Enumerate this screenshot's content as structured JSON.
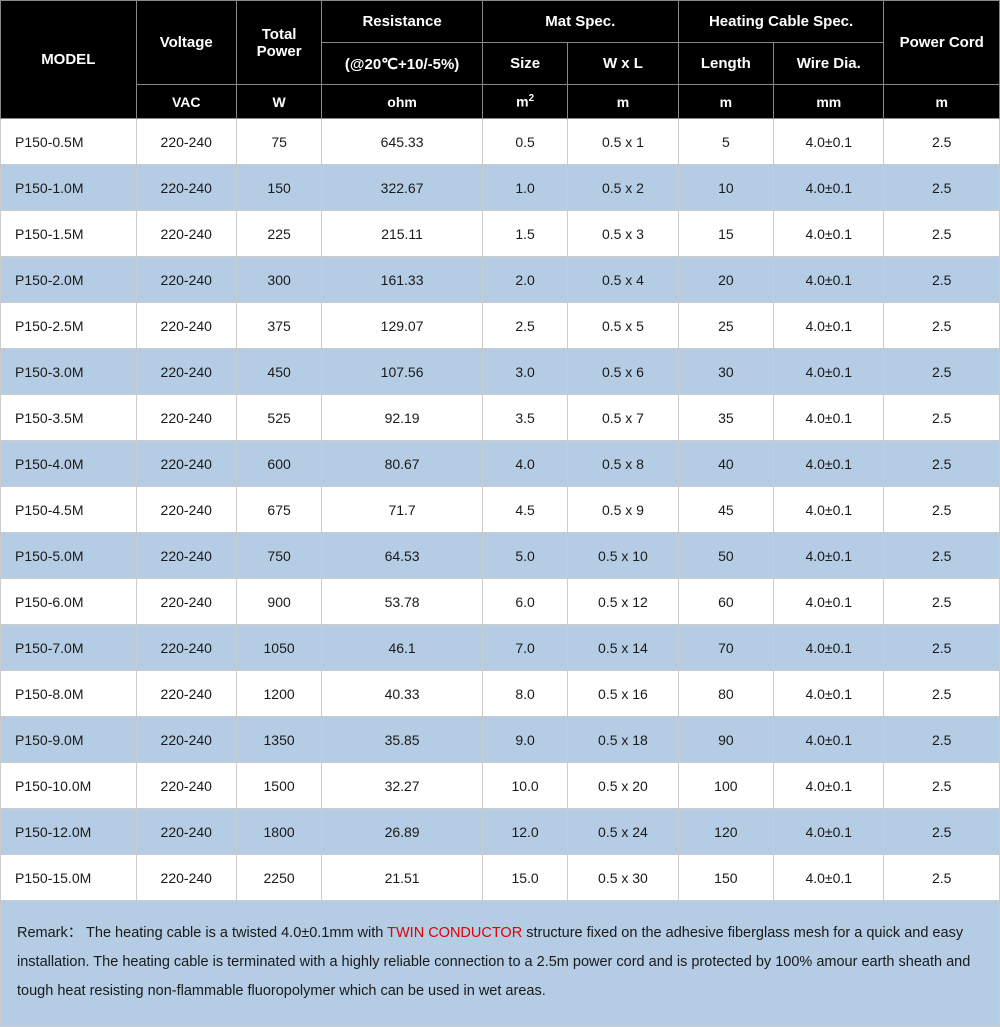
{
  "table": {
    "type": "table",
    "header_bg": "#000000",
    "header_fg": "#ffffff",
    "row_odd_bg": "#ffffff",
    "row_even_bg": "#b4cce4",
    "border_color": "#cccccc",
    "header_border_color": "#888888",
    "font_family": "Arial",
    "body_fontsize": 14,
    "header_fontsize": 15,
    "column_widths_pct": [
      13.5,
      10,
      8.5,
      16,
      8.5,
      11,
      9.5,
      11,
      11.5
    ],
    "columns": [
      {
        "group": "MODEL",
        "sub": "",
        "unit": ""
      },
      {
        "group": "Voltage",
        "sub": "",
        "unit": "VAC"
      },
      {
        "group": "Total Power",
        "sub": "",
        "unit": "W"
      },
      {
        "group": "Resistance",
        "sub": "(@20℃+10/-5%)",
        "unit": "ohm"
      },
      {
        "group": "Mat Spec.",
        "sub": "Size",
        "unit": "m²"
      },
      {
        "group": "Mat Spec.",
        "sub": "W x L",
        "unit": "m"
      },
      {
        "group": "Heating Cable Spec.",
        "sub": "Length",
        "unit": "m"
      },
      {
        "group": "Heating Cable Spec.",
        "sub": "Wire Dia.",
        "unit": "mm"
      },
      {
        "group": "Power Cord",
        "sub": "",
        "unit": "m"
      }
    ],
    "header_labels": {
      "model": "MODEL",
      "voltage": "Voltage",
      "total_power": "Total Power",
      "resistance": "Resistance",
      "resistance_sub": "(@20℃+10/-5%)",
      "mat_spec": "Mat Spec.",
      "mat_size": "Size",
      "mat_wxl": "W x L",
      "cable_spec": "Heating Cable Spec.",
      "cable_length": "Length",
      "cable_dia": "Wire Dia.",
      "power_cord": "Power Cord",
      "unit_vac": "VAC",
      "unit_w": "W",
      "unit_ohm": "ohm",
      "unit_m2": "m²",
      "unit_m": "m",
      "unit_mm": "mm"
    },
    "rows": [
      [
        "P150-0.5M",
        "220-240",
        "75",
        "645.33",
        "0.5",
        "0.5 x 1",
        "5",
        "4.0±0.1",
        "2.5"
      ],
      [
        "P150-1.0M",
        "220-240",
        "150",
        "322.67",
        "1.0",
        "0.5 x 2",
        "10",
        "4.0±0.1",
        "2.5"
      ],
      [
        "P150-1.5M",
        "220-240",
        "225",
        "215.11",
        "1.5",
        "0.5 x 3",
        "15",
        "4.0±0.1",
        "2.5"
      ],
      [
        "P150-2.0M",
        "220-240",
        "300",
        "161.33",
        "2.0",
        "0.5 x 4",
        "20",
        "4.0±0.1",
        "2.5"
      ],
      [
        "P150-2.5M",
        "220-240",
        "375",
        "129.07",
        "2.5",
        "0.5 x 5",
        "25",
        "4.0±0.1",
        "2.5"
      ],
      [
        "P150-3.0M",
        "220-240",
        "450",
        "107.56",
        "3.0",
        "0.5 x 6",
        "30",
        "4.0±0.1",
        "2.5"
      ],
      [
        "P150-3.5M",
        "220-240",
        "525",
        "92.19",
        "3.5",
        "0.5 x 7",
        "35",
        "4.0±0.1",
        "2.5"
      ],
      [
        "P150-4.0M",
        "220-240",
        "600",
        "80.67",
        "4.0",
        "0.5 x 8",
        "40",
        "4.0±0.1",
        "2.5"
      ],
      [
        "P150-4.5M",
        "220-240",
        "675",
        "71.7",
        "4.5",
        "0.5 x 9",
        "45",
        "4.0±0.1",
        "2.5"
      ],
      [
        "P150-5.0M",
        "220-240",
        "750",
        "64.53",
        "5.0",
        "0.5 x 10",
        "50",
        "4.0±0.1",
        "2.5"
      ],
      [
        "P150-6.0M",
        "220-240",
        "900",
        "53.78",
        "6.0",
        "0.5 x 12",
        "60",
        "4.0±0.1",
        "2.5"
      ],
      [
        "P150-7.0M",
        "220-240",
        "1050",
        "46.1",
        "7.0",
        "0.5 x 14",
        "70",
        "4.0±0.1",
        "2.5"
      ],
      [
        "P150-8.0M",
        "220-240",
        "1200",
        "40.33",
        "8.0",
        "0.5 x 16",
        "80",
        "4.0±0.1",
        "2.5"
      ],
      [
        "P150-9.0M",
        "220-240",
        "1350",
        "35.85",
        "9.0",
        "0.5 x 18",
        "90",
        "4.0±0.1",
        "2.5"
      ],
      [
        "P150-10.0M",
        "220-240",
        "1500",
        "32.27",
        "10.0",
        "0.5 x 20",
        "100",
        "4.0±0.1",
        "2.5"
      ],
      [
        "P150-12.0M",
        "220-240",
        "1800",
        "26.89",
        "12.0",
        "0.5 x 24",
        "120",
        "4.0±0.1",
        "2.5"
      ],
      [
        "P150-15.0M",
        "220-240",
        "2250",
        "21.51",
        "15.0",
        "0.5 x 30",
        "150",
        "4.0±0.1",
        "2.5"
      ]
    ]
  },
  "remark": {
    "bg": "#b4cce4",
    "highlight_color": "#e30000",
    "label": "Remark：",
    "part1": "The heating cable is a twisted 4.0±0.1mm with ",
    "highlight": "TWIN CONDUCTOR",
    "part2": " structure fixed on the adhesive fiberglass mesh for a quick and easy installation. The heating cable is terminated with a highly reliable connection to a 2.5m power cord and is protected by 100% amour earth sheath and tough heat resisting non-flammable fluoropolymer which can be used in wet areas."
  }
}
